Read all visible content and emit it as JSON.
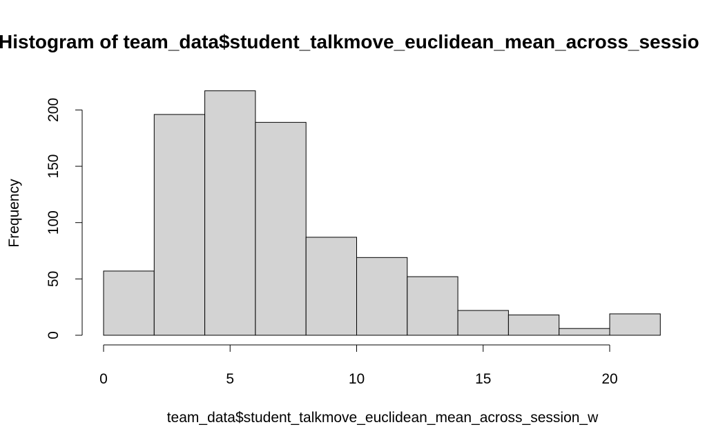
{
  "chart_data": {
    "type": "bar",
    "title": "Histogram of team_data$student_talkmove_euclidean_mean_across_sessio",
    "xlabel": "team_data$student_talkmove_euclidean_mean_across_session_w",
    "ylabel": "Frequency",
    "bins": [
      {
        "from": 0,
        "to": 2,
        "count": 57
      },
      {
        "from": 2,
        "to": 4,
        "count": 196
      },
      {
        "from": 4,
        "to": 6,
        "count": 217
      },
      {
        "from": 6,
        "to": 8,
        "count": 189
      },
      {
        "from": 8,
        "to": 10,
        "count": 87
      },
      {
        "from": 10,
        "to": 12,
        "count": 69
      },
      {
        "from": 12,
        "to": 14,
        "count": 52
      },
      {
        "from": 14,
        "to": 16,
        "count": 22
      },
      {
        "from": 16,
        "to": 18,
        "count": 18
      },
      {
        "from": 18,
        "to": 20,
        "count": 6
      },
      {
        "from": 20,
        "to": 22,
        "count": 19
      }
    ],
    "xlim": [
      0,
      22
    ],
    "ylim": [
      0,
      217
    ],
    "xticks": [
      "0",
      "5",
      "10",
      "15",
      "20"
    ],
    "yticks": [
      "0",
      "50",
      "100",
      "150",
      "200"
    ],
    "grid": false,
    "bar_color": "#d3d3d3",
    "border_color": "#000000"
  }
}
